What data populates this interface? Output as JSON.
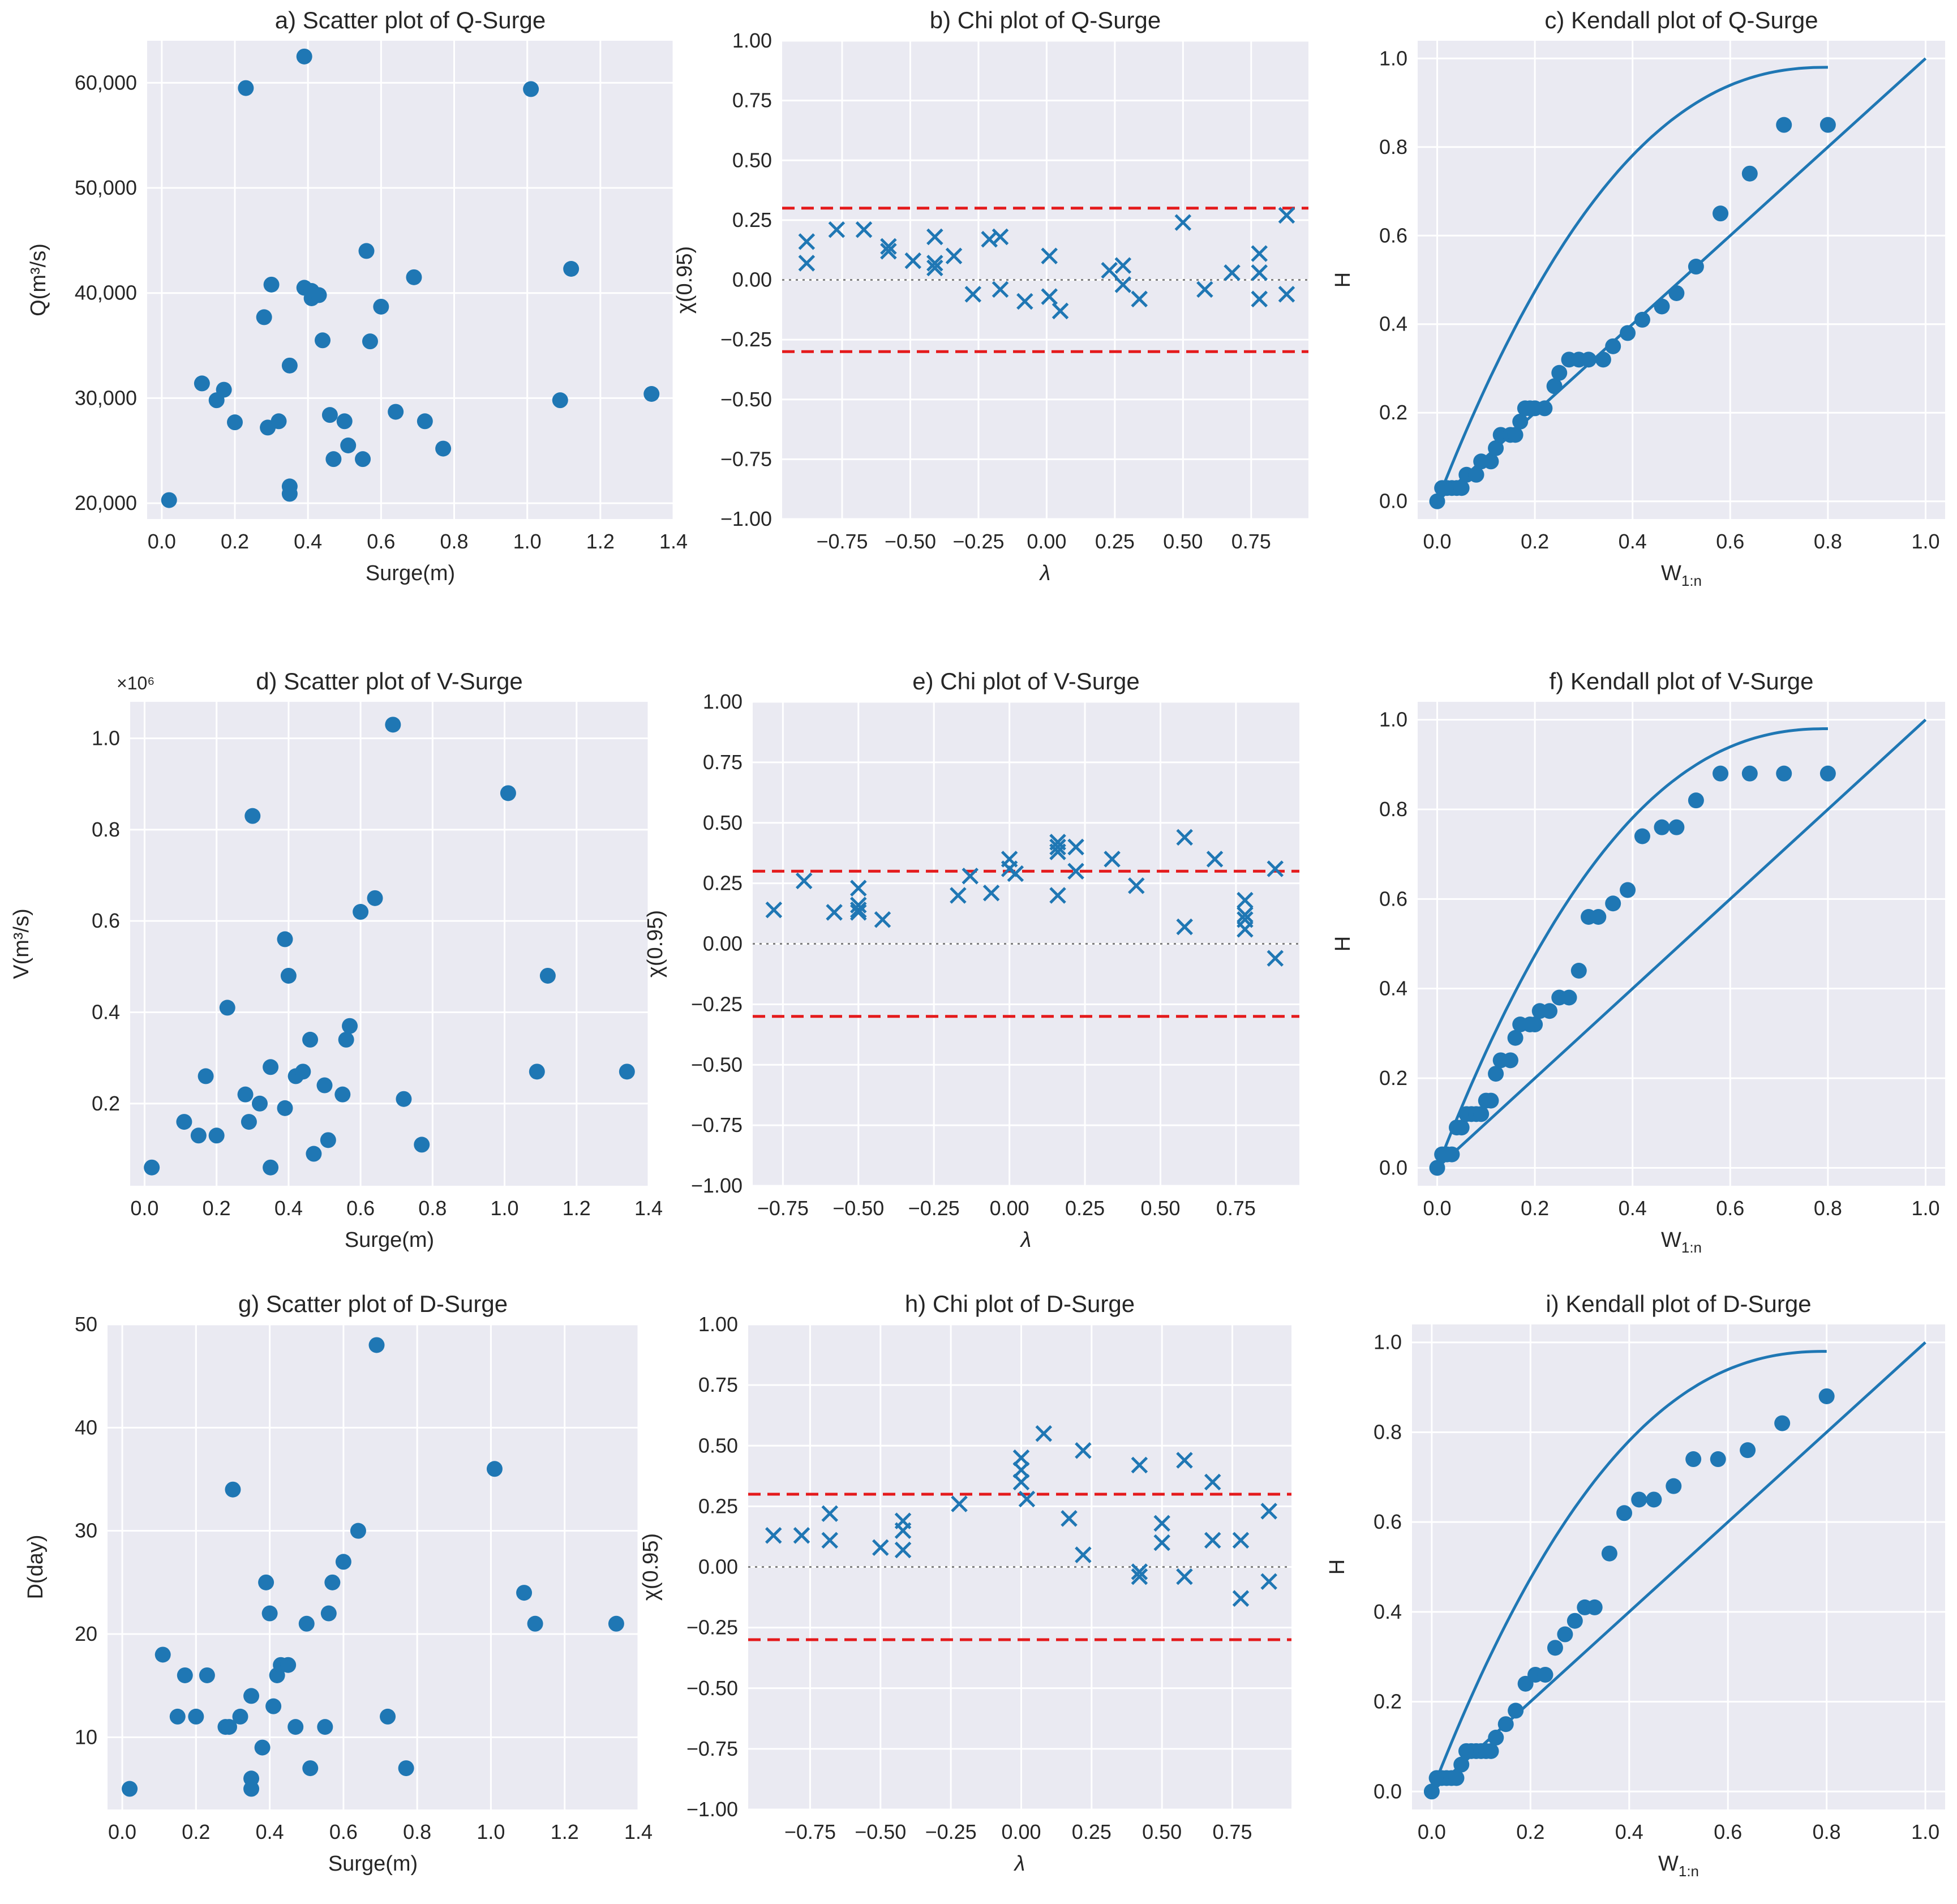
{
  "colors": {
    "background": "#ffffff",
    "axes": "#eaeaf2",
    "grid": "#ffffff",
    "marker": "#1f77b4",
    "threshold": "#e41a1c",
    "zero_line": "#808080",
    "text": "#262626"
  },
  "chart_data": [
    {
      "id": "a",
      "type": "scatter",
      "title": "a) Scatter plot of Q-Surge",
      "xlabel": "Surge(m)",
      "ylabel": "Q(m³/s)",
      "xlim": [
        -0.04,
        1.4
      ],
      "ylim": [
        18500,
        64000
      ],
      "xticks": [
        0,
        0.2,
        0.4,
        0.6,
        0.8,
        1.0,
        1.2,
        1.4
      ],
      "xtick_labels": [
        "0.0",
        "0.2",
        "0.4",
        "0.6",
        "0.8",
        "1.0",
        "1.2",
        "1.4"
      ],
      "yticks": [
        20000,
        30000,
        40000,
        50000,
        60000
      ],
      "ytick_labels": [
        "20,000",
        "30,000",
        "40,000",
        "50,000",
        "60,000"
      ],
      "x": [
        0.02,
        0.11,
        0.15,
        0.17,
        0.2,
        0.23,
        0.28,
        0.29,
        0.3,
        0.32,
        0.35,
        0.35,
        0.35,
        0.39,
        0.39,
        0.41,
        0.41,
        0.43,
        0.44,
        0.46,
        0.47,
        0.5,
        0.51,
        0.55,
        0.56,
        0.57,
        0.6,
        0.64,
        0.69,
        0.72,
        0.77,
        1.01,
        1.09,
        1.12,
        1.34
      ],
      "y": [
        20300,
        31400,
        29800,
        30800,
        27700,
        59500,
        37700,
        27200,
        40800,
        27800,
        33100,
        21600,
        20900,
        62500,
        40500,
        39500,
        40200,
        39800,
        35500,
        28400,
        24200,
        27800,
        25500,
        24200,
        44000,
        35400,
        38700,
        28700,
        41500,
        27800,
        25200,
        59400,
        29800,
        42300,
        30400
      ]
    },
    {
      "id": "b",
      "type": "scatter",
      "title": "b) Chi plot of Q-Surge",
      "xlabel": "λ",
      "ylabel": "χ(0.95)",
      "xlim": [
        -0.97,
        0.96
      ],
      "ylim": [
        -1.0,
        1.0
      ],
      "xticks": [
        -0.75,
        -0.5,
        -0.25,
        0,
        0.25,
        0.5,
        0.75
      ],
      "xtick_labels": [
        "−0.75",
        "−0.50",
        "−0.25",
        "0.00",
        "0.25",
        "0.50",
        "0.75"
      ],
      "yticks": [
        -1.0,
        -0.75,
        -0.5,
        -0.25,
        0,
        0.25,
        0.5,
        0.75,
        1.0
      ],
      "ytick_labels": [
        "−1.00",
        "−0.75",
        "−0.50",
        "−0.25",
        "0.00",
        "0.25",
        "0.50",
        "0.75",
        "1.00"
      ],
      "reference_lines": [
        0.3,
        -0.3
      ],
      "x": [
        -0.88,
        -0.88,
        -0.77,
        -0.67,
        -0.58,
        -0.58,
        -0.49,
        -0.41,
        -0.41,
        -0.41,
        -0.34,
        -0.27,
        -0.21,
        -0.17,
        -0.17,
        -0.08,
        0.01,
        0.01,
        0.05,
        0.23,
        0.28,
        0.28,
        0.34,
        0.5,
        0.58,
        0.68,
        0.78,
        0.78,
        0.78,
        0.88,
        0.88
      ],
      "y": [
        0.16,
        0.07,
        0.21,
        0.21,
        0.14,
        0.12,
        0.08,
        0.18,
        0.07,
        0.05,
        0.1,
        -0.06,
        0.17,
        0.18,
        -0.04,
        -0.09,
        0.1,
        -0.07,
        -0.13,
        0.04,
        0.06,
        -0.02,
        -0.08,
        0.24,
        -0.04,
        0.03,
        0.11,
        0.03,
        -0.08,
        0.27,
        -0.06
      ]
    },
    {
      "id": "c",
      "type": "kendall",
      "title": "c) Kendall plot of Q-Surge",
      "xlabel": "W1:n",
      "ylabel": "H",
      "xlim": [
        -0.04,
        1.04
      ],
      "ylim": [
        -0.04,
        1.04
      ],
      "xticks": [
        0,
        0.2,
        0.4,
        0.6,
        0.8,
        1.0
      ],
      "xtick_labels": [
        "0.0",
        "0.2",
        "0.4",
        "0.6",
        "0.8",
        "1.0"
      ],
      "yticks": [
        0,
        0.2,
        0.4,
        0.6,
        0.8,
        1.0
      ],
      "ytick_labels": [
        "0.0",
        "0.2",
        "0.4",
        "0.6",
        "0.8",
        "1.0"
      ],
      "x": [
        0.0,
        0.01,
        0.02,
        0.03,
        0.04,
        0.05,
        0.06,
        0.08,
        0.09,
        0.11,
        0.12,
        0.13,
        0.15,
        0.16,
        0.17,
        0.18,
        0.19,
        0.2,
        0.22,
        0.24,
        0.25,
        0.27,
        0.29,
        0.31,
        0.34,
        0.36,
        0.39,
        0.42,
        0.46,
        0.49,
        0.53,
        0.58,
        0.64,
        0.71,
        0.8
      ],
      "y": [
        0.0,
        0.03,
        0.03,
        0.03,
        0.03,
        0.03,
        0.06,
        0.06,
        0.09,
        0.09,
        0.12,
        0.15,
        0.15,
        0.15,
        0.18,
        0.21,
        0.21,
        0.21,
        0.21,
        0.26,
        0.29,
        0.32,
        0.32,
        0.32,
        0.32,
        0.35,
        0.38,
        0.41,
        0.44,
        0.47,
        0.53,
        0.65,
        0.74,
        0.85,
        0.85
      ]
    },
    {
      "id": "d",
      "type": "scatter",
      "title": "d) Scatter plot of V-Surge",
      "xlabel": "Surge(m)",
      "ylabel": "V(m³/s)",
      "offset_label": "×10⁶",
      "xlim": [
        -0.04,
        1.4
      ],
      "ylim": [
        0.02,
        1.08
      ],
      "xticks": [
        0,
        0.2,
        0.4,
        0.6,
        0.8,
        1.0,
        1.2,
        1.4
      ],
      "xtick_labels": [
        "0.0",
        "0.2",
        "0.4",
        "0.6",
        "0.8",
        "1.0",
        "1.2",
        "1.4"
      ],
      "yticks": [
        0.2,
        0.4,
        0.6,
        0.8,
        1.0
      ],
      "ytick_labels": [
        "0.2",
        "0.4",
        "0.6",
        "0.8",
        "1.0"
      ],
      "x": [
        0.02,
        0.11,
        0.15,
        0.17,
        0.2,
        0.23,
        0.28,
        0.29,
        0.3,
        0.32,
        0.35,
        0.35,
        0.39,
        0.39,
        0.4,
        0.42,
        0.44,
        0.46,
        0.47,
        0.5,
        0.51,
        0.55,
        0.56,
        0.57,
        0.6,
        0.64,
        0.69,
        0.72,
        0.77,
        1.01,
        1.09,
        1.12,
        1.34
      ],
      "y": [
        0.06,
        0.16,
        0.13,
        0.26,
        0.13,
        0.41,
        0.22,
        0.16,
        0.83,
        0.2,
        0.28,
        0.06,
        0.56,
        0.19,
        0.48,
        0.26,
        0.27,
        0.34,
        0.09,
        0.24,
        0.12,
        0.22,
        0.34,
        0.37,
        0.62,
        0.65,
        1.03,
        0.21,
        0.11,
        0.88,
        0.27,
        0.48,
        0.27
      ]
    },
    {
      "id": "e",
      "type": "scatter",
      "title": "e) Chi plot of V-Surge",
      "xlabel": "λ",
      "ylabel": "χ(0.95)",
      "xlim": [
        -0.85,
        0.96
      ],
      "ylim": [
        -1.0,
        1.0
      ],
      "xticks": [
        -0.75,
        -0.5,
        -0.25,
        0,
        0.25,
        0.5,
        0.75
      ],
      "xtick_labels": [
        "−0.75",
        "−0.50",
        "−0.25",
        "0.00",
        "0.25",
        "0.50",
        "0.75"
      ],
      "yticks": [
        -1.0,
        -0.75,
        -0.5,
        -0.25,
        0,
        0.25,
        0.5,
        0.75,
        1.0
      ],
      "ytick_labels": [
        "−1.00",
        "−0.75",
        "−0.50",
        "−0.25",
        "0.00",
        "0.25",
        "0.50",
        "0.75",
        "1.00"
      ],
      "reference_lines": [
        0.3,
        -0.3
      ],
      "x": [
        -0.78,
        -0.68,
        -0.58,
        -0.5,
        -0.5,
        -0.5,
        -0.5,
        -0.42,
        -0.17,
        -0.13,
        -0.06,
        0.0,
        0.0,
        0.02,
        0.16,
        0.16,
        0.16,
        0.16,
        0.22,
        0.22,
        0.34,
        0.42,
        0.58,
        0.58,
        0.68,
        0.78,
        0.78,
        0.78,
        0.78,
        0.88,
        0.88
      ],
      "y": [
        0.14,
        0.26,
        0.13,
        0.23,
        0.16,
        0.14,
        0.13,
        0.1,
        0.2,
        0.28,
        0.21,
        0.35,
        0.31,
        0.29,
        0.42,
        0.38,
        0.2,
        0.4,
        0.4,
        0.3,
        0.35,
        0.24,
        0.44,
        0.07,
        0.35,
        0.18,
        0.12,
        0.06,
        0.1,
        0.31,
        -0.06
      ]
    },
    {
      "id": "f",
      "type": "kendall",
      "title": "f) Kendall plot of V-Surge",
      "xlabel": "W1:n",
      "ylabel": "H",
      "xlim": [
        -0.04,
        1.04
      ],
      "ylim": [
        -0.04,
        1.04
      ],
      "xticks": [
        0,
        0.2,
        0.4,
        0.6,
        0.8,
        1.0
      ],
      "xtick_labels": [
        "0.0",
        "0.2",
        "0.4",
        "0.6",
        "0.8",
        "1.0"
      ],
      "yticks": [
        0,
        0.2,
        0.4,
        0.6,
        0.8,
        1.0
      ],
      "ytick_labels": [
        "0.0",
        "0.2",
        "0.4",
        "0.6",
        "0.8",
        "1.0"
      ],
      "x": [
        0.0,
        0.01,
        0.02,
        0.03,
        0.04,
        0.05,
        0.06,
        0.07,
        0.08,
        0.09,
        0.1,
        0.11,
        0.12,
        0.13,
        0.15,
        0.16,
        0.17,
        0.19,
        0.2,
        0.21,
        0.23,
        0.25,
        0.27,
        0.29,
        0.31,
        0.33,
        0.36,
        0.39,
        0.42,
        0.46,
        0.49,
        0.53,
        0.58,
        0.64,
        0.71,
        0.8
      ],
      "y": [
        0.0,
        0.03,
        0.03,
        0.03,
        0.09,
        0.09,
        0.12,
        0.12,
        0.12,
        0.12,
        0.15,
        0.15,
        0.21,
        0.24,
        0.24,
        0.29,
        0.32,
        0.32,
        0.32,
        0.35,
        0.35,
        0.38,
        0.38,
        0.44,
        0.56,
        0.56,
        0.59,
        0.62,
        0.74,
        0.76,
        0.76,
        0.82,
        0.88,
        0.88,
        0.88,
        0.88
      ]
    },
    {
      "id": "g",
      "type": "scatter",
      "title": "g) Scatter plot of D-Surge",
      "xlabel": "Surge(m)",
      "ylabel": "D(day)",
      "xlim": [
        -0.04,
        1.4
      ],
      "ylim": [
        3,
        50
      ],
      "xticks": [
        0,
        0.2,
        0.4,
        0.6,
        0.8,
        1.0,
        1.2,
        1.4
      ],
      "xtick_labels": [
        "0.0",
        "0.2",
        "0.4",
        "0.6",
        "0.8",
        "1.0",
        "1.2",
        "1.4"
      ],
      "yticks": [
        10,
        20,
        30,
        40,
        50
      ],
      "ytick_labels": [
        "10",
        "20",
        "30",
        "40",
        "50"
      ],
      "x": [
        0.02,
        0.11,
        0.15,
        0.17,
        0.2,
        0.23,
        0.28,
        0.29,
        0.3,
        0.32,
        0.35,
        0.35,
        0.35,
        0.38,
        0.39,
        0.4,
        0.41,
        0.42,
        0.43,
        0.45,
        0.47,
        0.5,
        0.51,
        0.55,
        0.56,
        0.57,
        0.6,
        0.64,
        0.69,
        0.72,
        0.77,
        1.01,
        1.09,
        1.12,
        1.34
      ],
      "y": [
        5,
        18,
        12,
        16,
        12,
        16,
        11,
        11,
        34,
        12,
        14,
        6,
        5,
        9,
        25,
        22,
        13,
        16,
        17,
        17,
        11,
        21,
        7,
        11,
        22,
        25,
        27,
        30,
        48,
        12,
        7,
        36,
        24,
        21,
        21
      ]
    },
    {
      "id": "h",
      "type": "scatter",
      "title": "h) Chi plot of D-Surge",
      "xlabel": "λ",
      "ylabel": "χ(0.95)",
      "xlim": [
        -0.97,
        0.96
      ],
      "ylim": [
        -1.0,
        1.0
      ],
      "xticks": [
        -0.75,
        -0.5,
        -0.25,
        0,
        0.25,
        0.5,
        0.75
      ],
      "xtick_labels": [
        "−0.75",
        "−0.50",
        "−0.25",
        "0.00",
        "0.25",
        "0.50",
        "0.75"
      ],
      "yticks": [
        -1.0,
        -0.75,
        -0.5,
        -0.25,
        0,
        0.25,
        0.5,
        0.75,
        1.0
      ],
      "ytick_labels": [
        "−1.00",
        "−0.75",
        "−0.50",
        "−0.25",
        "0.00",
        "0.25",
        "0.50",
        "0.75",
        "1.00"
      ],
      "reference_lines": [
        0.3,
        -0.3
      ],
      "x": [
        -0.88,
        -0.78,
        -0.68,
        -0.68,
        -0.5,
        -0.42,
        -0.42,
        -0.42,
        -0.22,
        0.0,
        0.0,
        0.0,
        0.02,
        0.08,
        0.17,
        0.22,
        0.22,
        0.42,
        0.42,
        0.42,
        0.5,
        0.5,
        0.58,
        0.58,
        0.68,
        0.68,
        0.78,
        0.78,
        0.88,
        0.88
      ],
      "y": [
        0.13,
        0.13,
        0.22,
        0.11,
        0.08,
        0.19,
        0.15,
        0.07,
        0.26,
        0.45,
        0.4,
        0.35,
        0.28,
        0.55,
        0.2,
        0.48,
        0.05,
        0.42,
        -0.02,
        -0.04,
        0.18,
        0.1,
        0.44,
        -0.04,
        0.35,
        0.11,
        0.11,
        -0.13,
        0.23,
        -0.06
      ]
    },
    {
      "id": "i",
      "type": "kendall",
      "title": "i) Kendall plot of D-Surge",
      "xlabel": "W1:n",
      "ylabel": "H",
      "xlim": [
        -0.04,
        1.04
      ],
      "ylim": [
        -0.04,
        1.04
      ],
      "xticks": [
        0,
        0.2,
        0.4,
        0.6,
        0.8,
        1.0
      ],
      "xtick_labels": [
        "0.0",
        "0.2",
        "0.4",
        "0.6",
        "0.8",
        "1.0"
      ],
      "yticks": [
        0,
        0.2,
        0.4,
        0.6,
        0.8,
        1.0
      ],
      "ytick_labels": [
        "0.0",
        "0.2",
        "0.4",
        "0.6",
        "0.8",
        "1.0"
      ],
      "x": [
        0.0,
        0.01,
        0.02,
        0.03,
        0.04,
        0.05,
        0.06,
        0.07,
        0.08,
        0.09,
        0.1,
        0.11,
        0.12,
        0.13,
        0.15,
        0.17,
        0.19,
        0.21,
        0.23,
        0.25,
        0.27,
        0.29,
        0.31,
        0.33,
        0.36,
        0.39,
        0.42,
        0.45,
        0.49,
        0.53,
        0.58,
        0.64,
        0.71,
        0.8
      ],
      "y": [
        0.0,
        0.03,
        0.03,
        0.03,
        0.03,
        0.03,
        0.06,
        0.09,
        0.09,
        0.09,
        0.09,
        0.09,
        0.09,
        0.12,
        0.15,
        0.18,
        0.24,
        0.26,
        0.26,
        0.32,
        0.35,
        0.38,
        0.41,
        0.41,
        0.53,
        0.62,
        0.65,
        0.65,
        0.68,
        0.74,
        0.74,
        0.76,
        0.82,
        0.88
      ]
    }
  ]
}
